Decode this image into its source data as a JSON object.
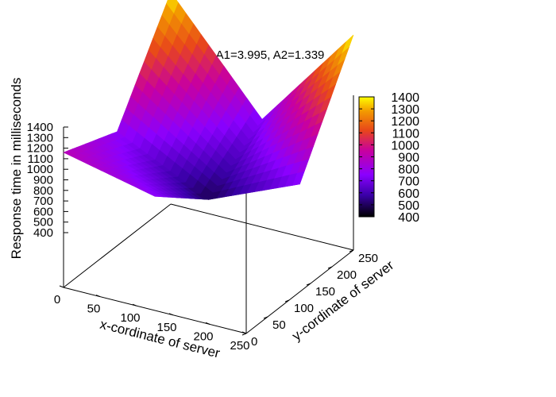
{
  "chart_data": {
    "type": "surface",
    "title": "A1=3.995, A2=1.339",
    "xlabel": "x-cordinate of server",
    "ylabel": "y-cordinate of server",
    "zlabel": "Response time in milliseconds",
    "xlim": [
      0,
      250
    ],
    "ylim": [
      0,
      250
    ],
    "zlim": [
      400,
      1400
    ],
    "x_ticks": [
      "0",
      "50",
      "100",
      "150",
      "200",
      "250"
    ],
    "y_ticks": [
      "0",
      "50",
      "100",
      "150",
      "200",
      "250"
    ],
    "z_ticks": [
      "400",
      "500",
      "600",
      "700",
      "800",
      "900",
      "1000",
      "1100",
      "1200",
      "1300",
      "1400"
    ],
    "colorbar_ticks": [
      "400",
      "500",
      "600",
      "700",
      "800",
      "900",
      "1000",
      "1100",
      "1200",
      "1300",
      "1400"
    ],
    "colorbar_range": [
      400,
      1400
    ],
    "grid_values": {
      "x": [
        0,
        125,
        250
      ],
      "y": [
        0,
        125,
        250
      ],
      "z": [
        [
          900,
          770,
          1380
        ],
        [
          770,
          490,
          730
        ],
        [
          1380,
          730,
          1400
        ]
      ]
    },
    "colormap": [
      "#000000",
      "#3a00a8",
      "#8a00ff",
      "#c8009f",
      "#e8461a",
      "#f39a00",
      "#ffff00"
    ]
  }
}
